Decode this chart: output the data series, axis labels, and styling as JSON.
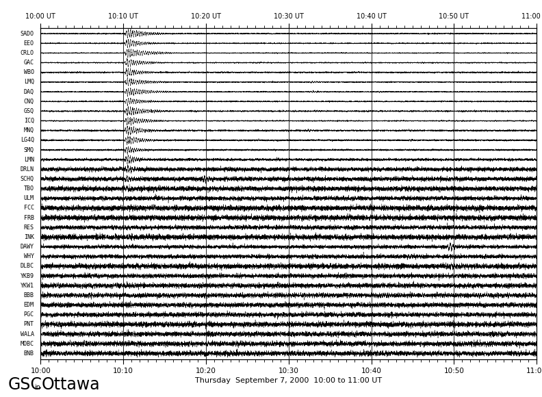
{
  "stations": [
    "SADO",
    "EEO",
    "CRLO",
    "GAC",
    "WBO",
    "LMQ",
    "DAQ",
    "CNQ",
    "GSQ",
    "ICQ",
    "MNQ",
    "LG4Q",
    "SMQ",
    "LMN",
    "DRLN",
    "SCHQ",
    "TBO",
    "ULM",
    "FCC",
    "FRB",
    "RES",
    "INK",
    "DAWY",
    "WHY",
    "DLBC",
    "YKB9",
    "YKW1",
    "BBB",
    "EDM",
    "PGC",
    "PNT",
    "WALA",
    "MOBC",
    "BNB"
  ],
  "bottom_tick_labels": [
    "10:00",
    "10:10",
    "10:20",
    "10:30",
    "10:40",
    "10:50",
    "11:00"
  ],
  "top_tick_labels": [
    "10:00 UT",
    "10:10 UT",
    "10:20 UT",
    "10:30 UT",
    "10:40 UT",
    "10:50 UT",
    "11:00 UT"
  ],
  "xlabel": "Thursday  September 7, 2000  10:00 to 11:00 UT",
  "logo_text": "GSC",
  "logo_sub": "in",
  "logo_city": "Ottawa",
  "background_color": "#ffffff",
  "line_color": "#000000",
  "event_time": 10.17,
  "vertical_line_times": [
    10,
    20,
    30,
    40,
    50
  ],
  "base_noise": [
    0.06,
    0.04,
    0.06,
    0.05,
    0.04,
    0.06,
    0.06,
    0.05,
    0.06,
    0.05,
    0.05,
    0.05,
    0.04,
    0.04,
    0.05,
    0.06,
    0.05,
    0.05,
    0.06,
    0.07,
    0.12,
    0.04,
    0.03,
    0.04,
    0.04,
    0.18,
    0.18,
    0.22,
    0.4,
    0.32,
    0.3,
    0.14,
    0.14,
    0.2
  ],
  "event_amp": [
    0.85,
    0.6,
    1.0,
    0.7,
    0.5,
    0.8,
    0.9,
    0.65,
    0.75,
    0.7,
    0.6,
    0.55,
    0.42,
    0.35,
    0.22,
    0.2,
    0.1,
    0.08,
    0.07,
    0.08,
    0.14,
    0.06,
    0.05,
    0.04,
    0.04,
    0.12,
    0.12,
    0.14,
    0.0,
    0.12,
    0.1,
    0.07,
    0.06,
    0.1
  ],
  "event_dur": [
    5.0,
    4.0,
    6.0,
    4.5,
    3.5,
    5.0,
    5.5,
    4.0,
    5.0,
    5.0,
    4.0,
    4.0,
    3.0,
    2.5,
    2.0,
    2.0,
    1.5,
    1.2,
    1.0,
    1.2,
    2.0,
    1.0,
    1.0,
    0.8,
    0.8,
    2.0,
    2.0,
    2.5,
    0.0,
    2.0,
    2.0,
    1.5,
    1.5,
    2.0
  ],
  "event_freq": [
    4.0,
    4.0,
    4.0,
    4.0,
    4.0,
    4.0,
    4.0,
    4.0,
    4.0,
    4.0,
    4.0,
    4.0,
    4.0,
    4.0,
    3.5,
    3.5,
    3.0,
    3.0,
    3.0,
    3.0,
    3.0,
    3.0,
    3.0,
    3.0,
    3.0,
    3.0,
    3.0,
    3.0,
    3.0,
    3.0,
    3.0,
    3.0,
    3.0,
    3.0
  ],
  "secondary_events": {
    "LMQ": [
      {
        "t": 32.5,
        "amp": 0.18,
        "dur": 2.5,
        "freq": 3.5
      }
    ],
    "DAQ": [
      {
        "t": 32.5,
        "amp": 0.22,
        "dur": 2.5,
        "freq": 3.5
      },
      {
        "t": 40.5,
        "amp": 0.15,
        "dur": 1.5,
        "freq": 3.0
      }
    ],
    "GAC": [
      {
        "t": 45.5,
        "amp": 0.12,
        "dur": 1.5,
        "freq": 3.5
      }
    ],
    "CNQ": [
      {
        "t": 48.2,
        "amp": 0.1,
        "dur": 1.2,
        "freq": 3.5
      }
    ],
    "MNQ": [
      {
        "t": 32.0,
        "amp": 0.14,
        "dur": 2.0,
        "freq": 3.0
      },
      {
        "t": 44.5,
        "amp": 0.1,
        "dur": 1.5,
        "freq": 3.0
      }
    ],
    "LG4Q": [
      {
        "t": 44.5,
        "amp": 0.12,
        "dur": 1.5,
        "freq": 3.5
      }
    ],
    "DAWY": [
      {
        "t": 49.2,
        "amp": 0.2,
        "dur": 1.5,
        "freq": 3.0
      }
    ],
    "DLBC": [
      {
        "t": 49.5,
        "amp": 0.14,
        "dur": 1.2,
        "freq": 3.0
      }
    ],
    "WHY": [
      {
        "t": 44.0,
        "amp": 0.08,
        "dur": 1.5,
        "freq": 3.0
      }
    ],
    "EEO": [
      {
        "t": 48.5,
        "amp": 0.1,
        "dur": 1.5,
        "freq": 3.5
      }
    ],
    "BNB": [
      {
        "t": 30.5,
        "amp": 0.18,
        "dur": 1.5,
        "freq": 3.0
      }
    ],
    "SCHQ": [
      {
        "t": 19.5,
        "amp": 0.18,
        "dur": 2.0,
        "freq": 3.5
      }
    ],
    "GSQ": [
      {
        "t": 33.0,
        "amp": 0.1,
        "dur": 1.5,
        "freq": 3.5
      }
    ]
  }
}
